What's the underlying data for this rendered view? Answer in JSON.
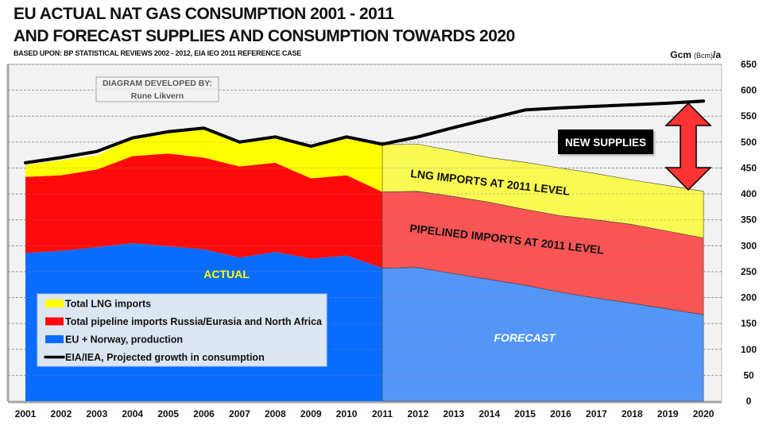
{
  "header": {
    "title_line1": "EU ACTUAL NAT GAS CONSUMPTION 2001 - 2011",
    "title_line2": "AND FORECAST SUPPLIES AND CONSUMPTION TOWARDS 2020",
    "subtitle": "BASED UPON: BP STATISTICAL REVIEWS 2002 - 2012, EIA IEO 2011 REFERENCE CASE"
  },
  "credit": {
    "line1": "DIAGRAM DEVELOPED BY:",
    "line2": "Rune Likvern"
  },
  "annotations": {
    "actual": "ACTUAL",
    "forecast": "FORECAST",
    "new_supplies": "NEW SUPPLIES",
    "lng_level": "LNG IMPORTS AT 2011 LEVEL",
    "pipelined_level": "PIPELINED IMPORTS AT 2011 LEVEL"
  },
  "colors": {
    "lng_actual": "#ffff00",
    "pipeline_actual": "#ff0a0a",
    "production_actual": "#0a6cff",
    "lng_forecast": "#f9f952",
    "pipeline_forecast": "#fb5555",
    "production_forecast": "#5396f8",
    "consumption_line": "#000000",
    "plot_bg": "#f2f2f2",
    "arrow": "#ff3333"
  },
  "chart_data": {
    "type": "area",
    "title": "EU ACTUAL NAT GAS CONSUMPTION 2001 - 2011 AND FORECAST SUPPLIES AND CONSUMPTION TOWARDS 2020",
    "ylabel_main": "Gcm",
    "ylabel_paren": "(Bcm)",
    "ylabel_suffix": "/a",
    "ylim": [
      0,
      650
    ],
    "yticks": [
      0,
      50,
      100,
      150,
      200,
      250,
      300,
      350,
      400,
      450,
      500,
      550,
      600,
      650
    ],
    "y_axis_side": "right",
    "grid": true,
    "x": [
      "2001",
      "2002",
      "2003",
      "2004",
      "2005",
      "2006",
      "2007",
      "2008",
      "2009",
      "2010",
      "2011",
      "2012",
      "2013",
      "2014",
      "2015",
      "2016",
      "2017",
      "2018",
      "2019",
      "2020"
    ],
    "actual_range": [
      "2001",
      "2011"
    ],
    "forecast_range": [
      "2011",
      "2020"
    ],
    "stacked_cumulative": true,
    "series": [
      {
        "name": "EU + Norway, production",
        "key": "production",
        "actual_top": [
          286,
          290,
          297,
          305,
          299,
          293,
          277,
          288,
          275,
          281,
          257
        ],
        "forecast_top": [
          257,
          258,
          246,
          235,
          224,
          210,
          199,
          189,
          178,
          167
        ]
      },
      {
        "name": "Total pipeline imports Russia/Eurasia and North Africa",
        "key": "pipeline",
        "actual_top": [
          433,
          436,
          447,
          473,
          478,
          470,
          453,
          460,
          430,
          436,
          404
        ],
        "forecast_top": [
          404,
          405,
          395,
          384,
          370,
          358,
          350,
          341,
          328,
          315
        ]
      },
      {
        "name": "Total LNG imports",
        "key": "lng",
        "actual_top": [
          456,
          465,
          474,
          508,
          520,
          526,
          500,
          508,
          492,
          508,
          495
        ],
        "forecast_top": [
          495,
          496,
          483,
          470,
          461,
          450,
          439,
          427,
          416,
          405
        ]
      },
      {
        "name": "EIA/IEA, Projected growth in consumption",
        "key": "consumption",
        "type": "line",
        "values": [
          460,
          470,
          482,
          508,
          520,
          527,
          500,
          510,
          492,
          510,
          496,
          510,
          528,
          545,
          562,
          566,
          569,
          572,
          575,
          579
        ]
      }
    ],
    "legend": [
      {
        "label": "Total LNG imports",
        "key": "lng"
      },
      {
        "label": "Total pipeline imports Russia/Eurasia and North Africa",
        "key": "pipeline"
      },
      {
        "label": "EU + Norway, production",
        "key": "production"
      },
      {
        "label": "EIA/IEA, Projected growth in consumption",
        "key": "consumption"
      }
    ],
    "legend_placement": "bottom-left"
  }
}
